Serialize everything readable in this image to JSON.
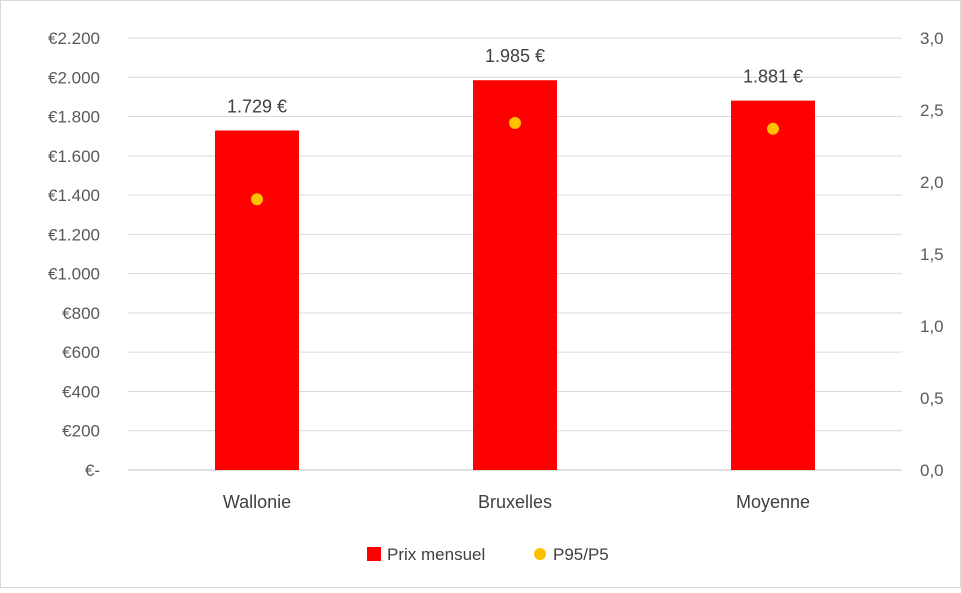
{
  "chart_data": {
    "type": "bar",
    "categories": [
      "Wallonie",
      "Bruxelles",
      "Moyenne"
    ],
    "series": [
      {
        "name": "Prix mensuel",
        "kind": "bar",
        "axis": "left",
        "color": "#ff0000",
        "values": [
          1729,
          1985,
          1881
        ],
        "data_labels": [
          "1.729 €",
          "1.985 €",
          "1.881 €"
        ]
      },
      {
        "name": "P95/P5",
        "kind": "scatter",
        "axis": "right",
        "color": "#ffc000",
        "values": [
          1.88,
          2.41,
          2.37
        ]
      }
    ],
    "y_left": {
      "range": [
        0,
        2200
      ],
      "ticks": [
        0,
        200,
        400,
        600,
        800,
        1000,
        1200,
        1400,
        1600,
        1800,
        2000,
        2200
      ],
      "tick_labels": [
        "€-",
        "€200",
        "€400",
        "€600",
        "€800",
        "€1.000",
        "€1.200",
        "€1.400",
        "€1.600",
        "€1.800",
        "€2.000",
        "€2.200"
      ]
    },
    "y_right": {
      "range": [
        0,
        3.0
      ],
      "ticks": [
        0,
        0.5,
        1.0,
        1.5,
        2.0,
        2.5,
        3.0
      ],
      "tick_labels": [
        "0,0",
        "0,5",
        "1,0",
        "1,5",
        "2,0",
        "2,5",
        "3,0"
      ]
    },
    "grid": true,
    "legend_position": "bottom"
  }
}
